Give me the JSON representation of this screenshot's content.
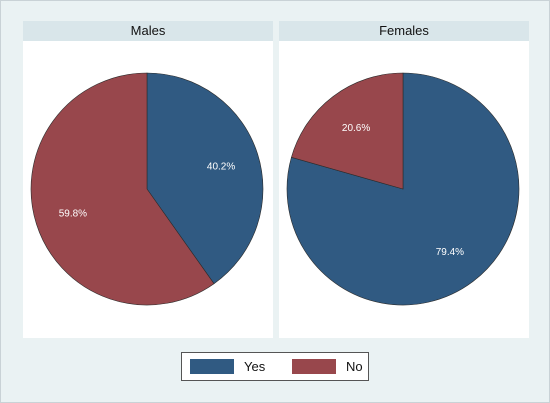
{
  "chart_data": [
    {
      "type": "pie",
      "title": "Males",
      "categories": [
        "Yes",
        "No"
      ],
      "values": [
        40.2,
        59.8
      ],
      "labels": [
        "40.2%",
        "59.8%"
      ]
    },
    {
      "type": "pie",
      "title": "Females",
      "categories": [
        "Yes",
        "No"
      ],
      "values": [
        79.4,
        20.6
      ],
      "labels": [
        "79.4%",
        "20.6%"
      ]
    }
  ],
  "legend": {
    "placement": "bottom",
    "items": [
      {
        "label": "Yes",
        "color": "#305a82"
      },
      {
        "label": "No",
        "color": "#98474c"
      }
    ]
  }
}
